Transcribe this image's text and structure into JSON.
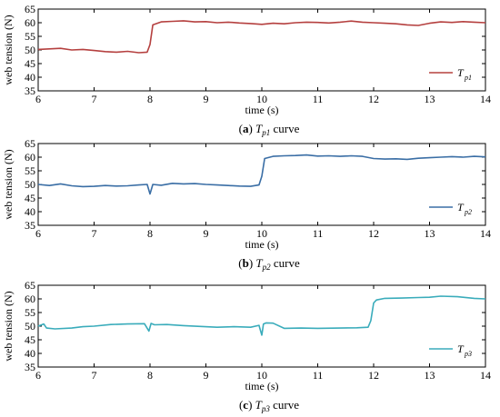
{
  "chart_data": [
    {
      "type": "line",
      "panel_letter": "a",
      "caption_symbol": "T",
      "caption_subscript": "p1",
      "caption_word": "curve",
      "xlabel": "time (s)",
      "ylabel": "web tension (N)",
      "xlim": [
        6,
        14
      ],
      "ylim": [
        35,
        65
      ],
      "xticks": [
        6,
        7,
        8,
        9,
        10,
        11,
        12,
        13,
        14
      ],
      "yticks": [
        35,
        40,
        45,
        50,
        55,
        60,
        65
      ],
      "legend_position": "bottom-right",
      "grid": false,
      "series": [
        {
          "name_symbol": "T",
          "name_subscript": "p1",
          "color": "#b5403f",
          "x": [
            6.0,
            6.2,
            6.4,
            6.6,
            6.8,
            7.0,
            7.2,
            7.4,
            7.6,
            7.8,
            7.95,
            8.0,
            8.05,
            8.2,
            8.4,
            8.6,
            8.8,
            9.0,
            9.2,
            9.4,
            9.6,
            9.8,
            10.0,
            10.2,
            10.4,
            10.6,
            10.8,
            11.0,
            11.2,
            11.4,
            11.6,
            11.8,
            12.0,
            12.2,
            12.4,
            12.6,
            12.8,
            13.0,
            13.2,
            13.4,
            13.6,
            13.8,
            14.0
          ],
          "y": [
            50.2,
            50.4,
            50.6,
            50.0,
            50.2,
            49.8,
            49.4,
            49.2,
            49.5,
            49.0,
            49.2,
            52.0,
            59.2,
            60.3,
            60.5,
            60.7,
            60.3,
            60.4,
            60.0,
            60.2,
            59.9,
            59.7,
            59.4,
            59.8,
            59.6,
            60.0,
            60.2,
            60.1,
            59.9,
            60.2,
            60.6,
            60.2,
            60.0,
            59.8,
            59.6,
            59.2,
            59.0,
            59.8,
            60.3,
            60.1,
            60.4,
            60.2,
            60.0
          ]
        }
      ]
    },
    {
      "type": "line",
      "panel_letter": "b",
      "caption_symbol": "T",
      "caption_subscript": "p2",
      "caption_word": "curve",
      "xlabel": "time (s)",
      "ylabel": "web tension (N)",
      "xlim": [
        6,
        14
      ],
      "ylim": [
        35,
        65
      ],
      "xticks": [
        6,
        7,
        8,
        9,
        10,
        11,
        12,
        13,
        14
      ],
      "yticks": [
        35,
        40,
        45,
        50,
        55,
        60,
        65
      ],
      "legend_position": "bottom-right",
      "grid": false,
      "series": [
        {
          "name_symbol": "T",
          "name_subscript": "p2",
          "color": "#3a6ea5",
          "x": [
            6.0,
            6.2,
            6.4,
            6.6,
            6.8,
            7.0,
            7.2,
            7.4,
            7.6,
            7.8,
            7.95,
            8.0,
            8.05,
            8.2,
            8.4,
            8.6,
            8.8,
            9.0,
            9.2,
            9.4,
            9.6,
            9.8,
            9.95,
            10.0,
            10.05,
            10.2,
            10.4,
            10.6,
            10.8,
            11.0,
            11.2,
            11.4,
            11.6,
            11.8,
            12.0,
            12.2,
            12.4,
            12.6,
            12.8,
            13.0,
            13.2,
            13.4,
            13.6,
            13.8,
            14.0
          ],
          "y": [
            50.0,
            49.6,
            50.2,
            49.5,
            49.2,
            49.3,
            49.6,
            49.4,
            49.5,
            49.8,
            50.0,
            46.5,
            50.0,
            49.7,
            50.4,
            50.2,
            50.3,
            50.0,
            49.8,
            49.6,
            49.4,
            49.3,
            49.8,
            53.0,
            59.5,
            60.3,
            60.5,
            60.6,
            60.8,
            60.4,
            60.5,
            60.3,
            60.5,
            60.3,
            59.5,
            59.3,
            59.4,
            59.2,
            59.6,
            59.8,
            60.0,
            60.2,
            60.0,
            60.3,
            60.1
          ]
        }
      ]
    },
    {
      "type": "line",
      "panel_letter": "c",
      "caption_symbol": "T",
      "caption_subscript": "p3",
      "caption_word": "curve",
      "xlabel": "time (s)",
      "ylabel": "web tension (N)",
      "xlim": [
        6,
        14
      ],
      "ylim": [
        35,
        65
      ],
      "xticks": [
        6,
        7,
        8,
        9,
        10,
        11,
        12,
        13,
        14
      ],
      "yticks": [
        35,
        40,
        45,
        50,
        55,
        60,
        65
      ],
      "legend_position": "bottom-right",
      "grid": false,
      "series": [
        {
          "name_symbol": "T",
          "name_subscript": "p3",
          "color": "#3aacbb",
          "x": [
            6.0,
            6.1,
            6.15,
            6.3,
            6.6,
            6.8,
            7.0,
            7.3,
            7.6,
            7.9,
            7.98,
            8.02,
            8.08,
            8.3,
            8.6,
            8.9,
            9.2,
            9.5,
            9.8,
            9.95,
            10.0,
            10.03,
            10.08,
            10.2,
            10.4,
            10.7,
            11.0,
            11.4,
            11.7,
            11.9,
            11.95,
            12.0,
            12.05,
            12.2,
            12.5,
            12.8,
            13.0,
            13.2,
            13.5,
            13.8,
            14.0
          ],
          "y": [
            50.0,
            50.8,
            49.3,
            49.0,
            49.3,
            49.8,
            50.0,
            50.6,
            50.8,
            50.9,
            48.2,
            51.0,
            50.5,
            50.6,
            50.2,
            49.9,
            49.6,
            49.8,
            49.6,
            50.3,
            46.7,
            50.8,
            51.2,
            51.1,
            49.2,
            49.3,
            49.2,
            49.3,
            49.4,
            49.6,
            52.0,
            58.5,
            59.6,
            60.2,
            60.3,
            60.5,
            60.6,
            61.0,
            60.8,
            60.2,
            60.0
          ]
        }
      ]
    }
  ]
}
